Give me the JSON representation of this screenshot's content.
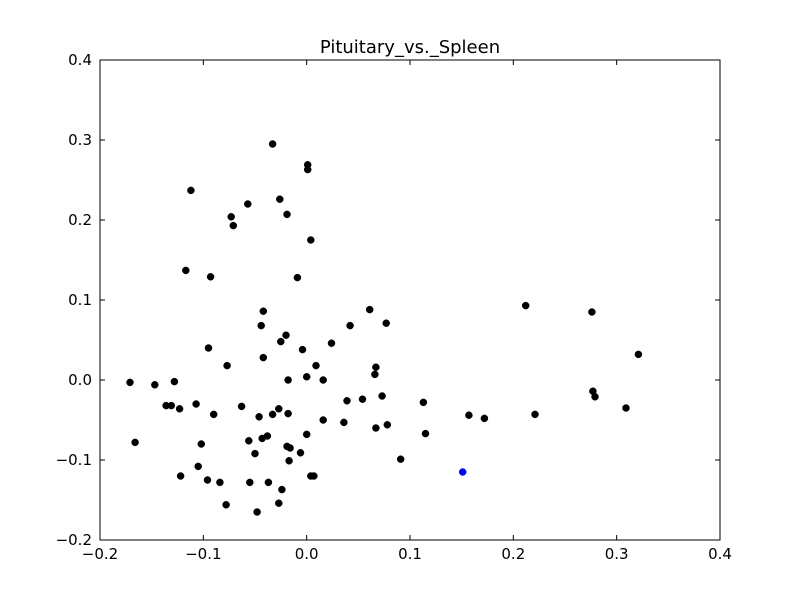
{
  "chart_data": {
    "type": "scatter",
    "title": "Pituitary_vs._Spleen",
    "xlabel": "",
    "ylabel": "",
    "xlim": [
      -0.2,
      0.4
    ],
    "ylim": [
      -0.2,
      0.4
    ],
    "xticks": [
      "−0.2",
      "−0.1",
      "0.0",
      "0.1",
      "0.2",
      "0.3",
      "0.4"
    ],
    "yticks": [
      "−0.2",
      "−0.1",
      "0.0",
      "0.1",
      "0.2",
      "0.3",
      "0.4"
    ],
    "grid": false,
    "legend": "none",
    "series": [
      {
        "color": "#000000",
        "points": [
          [
            -0.033,
            0.295
          ],
          [
            0.001,
            0.269
          ],
          [
            0.001,
            0.263
          ],
          [
            -0.112,
            0.237
          ],
          [
            -0.026,
            0.226
          ],
          [
            -0.057,
            0.22
          ],
          [
            -0.073,
            0.204
          ],
          [
            -0.019,
            0.207
          ],
          [
            -0.071,
            0.193
          ],
          [
            0.004,
            0.175
          ],
          [
            -0.117,
            0.137
          ],
          [
            -0.093,
            0.129
          ],
          [
            -0.009,
            0.128
          ],
          [
            0.212,
            0.093
          ],
          [
            0.061,
            0.088
          ],
          [
            -0.042,
            0.086
          ],
          [
            0.276,
            0.085
          ],
          [
            0.077,
            0.071
          ],
          [
            -0.044,
            0.068
          ],
          [
            0.042,
            0.068
          ],
          [
            -0.02,
            0.056
          ],
          [
            -0.025,
            0.048
          ],
          [
            0.024,
            0.046
          ],
          [
            -0.095,
            0.04
          ],
          [
            -0.004,
            0.038
          ],
          [
            0.321,
            0.032
          ],
          [
            -0.042,
            0.028
          ],
          [
            -0.077,
            0.018
          ],
          [
            0.009,
            0.018
          ],
          [
            0.067,
            0.016
          ],
          [
            0.066,
            0.007
          ],
          [
            0.0,
            0.004
          ],
          [
            -0.018,
            0.0
          ],
          [
            0.016,
            0.0
          ],
          [
            -0.171,
            -0.003
          ],
          [
            -0.128,
            -0.002
          ],
          [
            -0.147,
            -0.006
          ],
          [
            0.277,
            -0.014
          ],
          [
            0.073,
            -0.02
          ],
          [
            0.279,
            -0.021
          ],
          [
            0.054,
            -0.024
          ],
          [
            0.039,
            -0.026
          ],
          [
            0.113,
            -0.028
          ],
          [
            -0.107,
            -0.03
          ],
          [
            -0.136,
            -0.032
          ],
          [
            -0.131,
            -0.032
          ],
          [
            -0.063,
            -0.033
          ],
          [
            -0.123,
            -0.036
          ],
          [
            -0.027,
            -0.036
          ],
          [
            0.309,
            -0.035
          ],
          [
            -0.018,
            -0.042
          ],
          [
            -0.033,
            -0.043
          ],
          [
            -0.09,
            -0.043
          ],
          [
            0.157,
            -0.044
          ],
          [
            0.221,
            -0.043
          ],
          [
            -0.046,
            -0.046
          ],
          [
            0.172,
            -0.048
          ],
          [
            0.016,
            -0.05
          ],
          [
            0.036,
            -0.053
          ],
          [
            0.078,
            -0.056
          ],
          [
            0.067,
            -0.06
          ],
          [
            0.115,
            -0.067
          ],
          [
            0.0,
            -0.068
          ],
          [
            -0.038,
            -0.07
          ],
          [
            -0.043,
            -0.073
          ],
          [
            -0.056,
            -0.076
          ],
          [
            -0.166,
            -0.078
          ],
          [
            -0.102,
            -0.08
          ],
          [
            -0.019,
            -0.083
          ],
          [
            -0.016,
            -0.085
          ],
          [
            -0.006,
            -0.091
          ],
          [
            -0.05,
            -0.092
          ],
          [
            0.091,
            -0.099
          ],
          [
            -0.017,
            -0.101
          ],
          [
            -0.105,
            -0.108
          ],
          [
            -0.122,
            -0.12
          ],
          [
            0.004,
            -0.12
          ],
          [
            0.007,
            -0.12
          ],
          [
            -0.096,
            -0.125
          ],
          [
            -0.084,
            -0.128
          ],
          [
            -0.055,
            -0.128
          ],
          [
            -0.037,
            -0.128
          ],
          [
            -0.024,
            -0.137
          ],
          [
            -0.027,
            -0.154
          ],
          [
            -0.078,
            -0.156
          ],
          [
            -0.048,
            -0.165
          ]
        ]
      },
      {
        "color": "#0000ff",
        "points": [
          [
            0.151,
            -0.115
          ]
        ]
      }
    ]
  }
}
